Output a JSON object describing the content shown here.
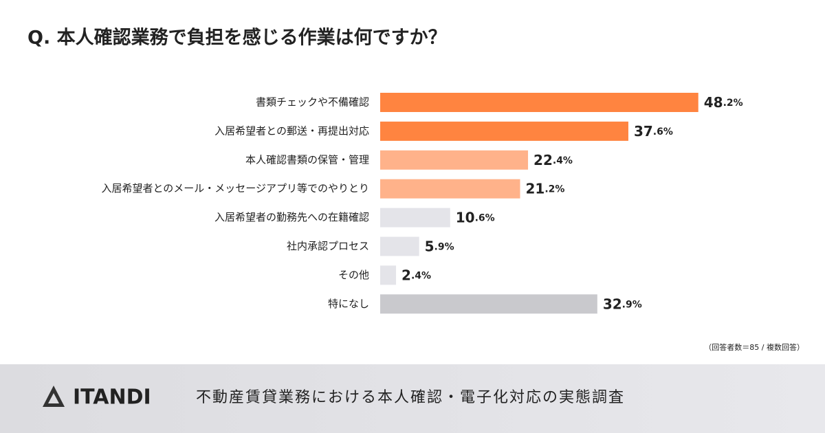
{
  "chart_data": {
    "type": "bar",
    "orientation": "horizontal",
    "title": "Q. 本人確認業務で負担を感じる作業は何ですか？",
    "categories": [
      "書類チェックや不備確認",
      "入居希望者との郵送・再提出対応",
      "本人確認書類の保管・管理",
      "入居希望者とのメール・メッセージアプリ等でのやりとり",
      "入居希望者の勤務先への在籍確認",
      "社内承認プロセス",
      "その他",
      "特になし"
    ],
    "values": [
      48.2,
      37.6,
      22.4,
      21.2,
      10.6,
      5.9,
      2.4,
      32.9
    ],
    "value_labels": [
      "48.2%",
      "37.6%",
      "22.4%",
      "21.2%",
      "10.6%",
      "5.9%",
      "2.4%",
      "32.9%"
    ],
    "colors": [
      "#ff8440",
      "#ff8440",
      "#ffb28a",
      "#ffb28a",
      "#e4e4e9",
      "#e4e4e9",
      "#e4e4e9",
      "#c9c9cd"
    ],
    "note": "（回答者数＝85 / 複数回答）"
  },
  "footer": {
    "brand": "ITANDI",
    "survey_title": "不動産賃貸業務における本人確認・電子化対応の実態調査"
  }
}
